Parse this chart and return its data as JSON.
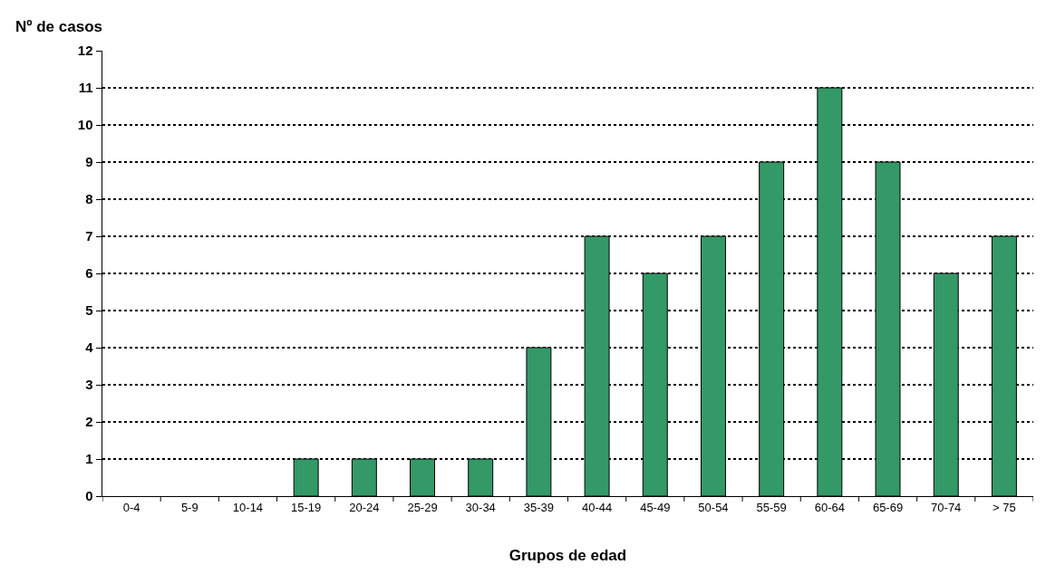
{
  "chart_data": {
    "type": "bar",
    "xlabel": "Grupos de edad",
    "ylabel": "Nº de casos",
    "categories": [
      "0-4",
      "5-9",
      "10-14",
      "15-19",
      "20-24",
      "25-29",
      "30-34",
      "35-39",
      "40-44",
      "45-49",
      "50-54",
      "55-59",
      "60-64",
      "65-69",
      "70-74",
      "> 75"
    ],
    "values": [
      0,
      0,
      0,
      1,
      1,
      1,
      1,
      4,
      7,
      6,
      7,
      9,
      11,
      9,
      6,
      7
    ],
    "color": "#339966",
    "ylim": [
      0,
      12
    ],
    "yticks": [
      0,
      1,
      2,
      3,
      4,
      5,
      6,
      7,
      8,
      9,
      10,
      11,
      12
    ],
    "grid": "y",
    "legend": false
  }
}
